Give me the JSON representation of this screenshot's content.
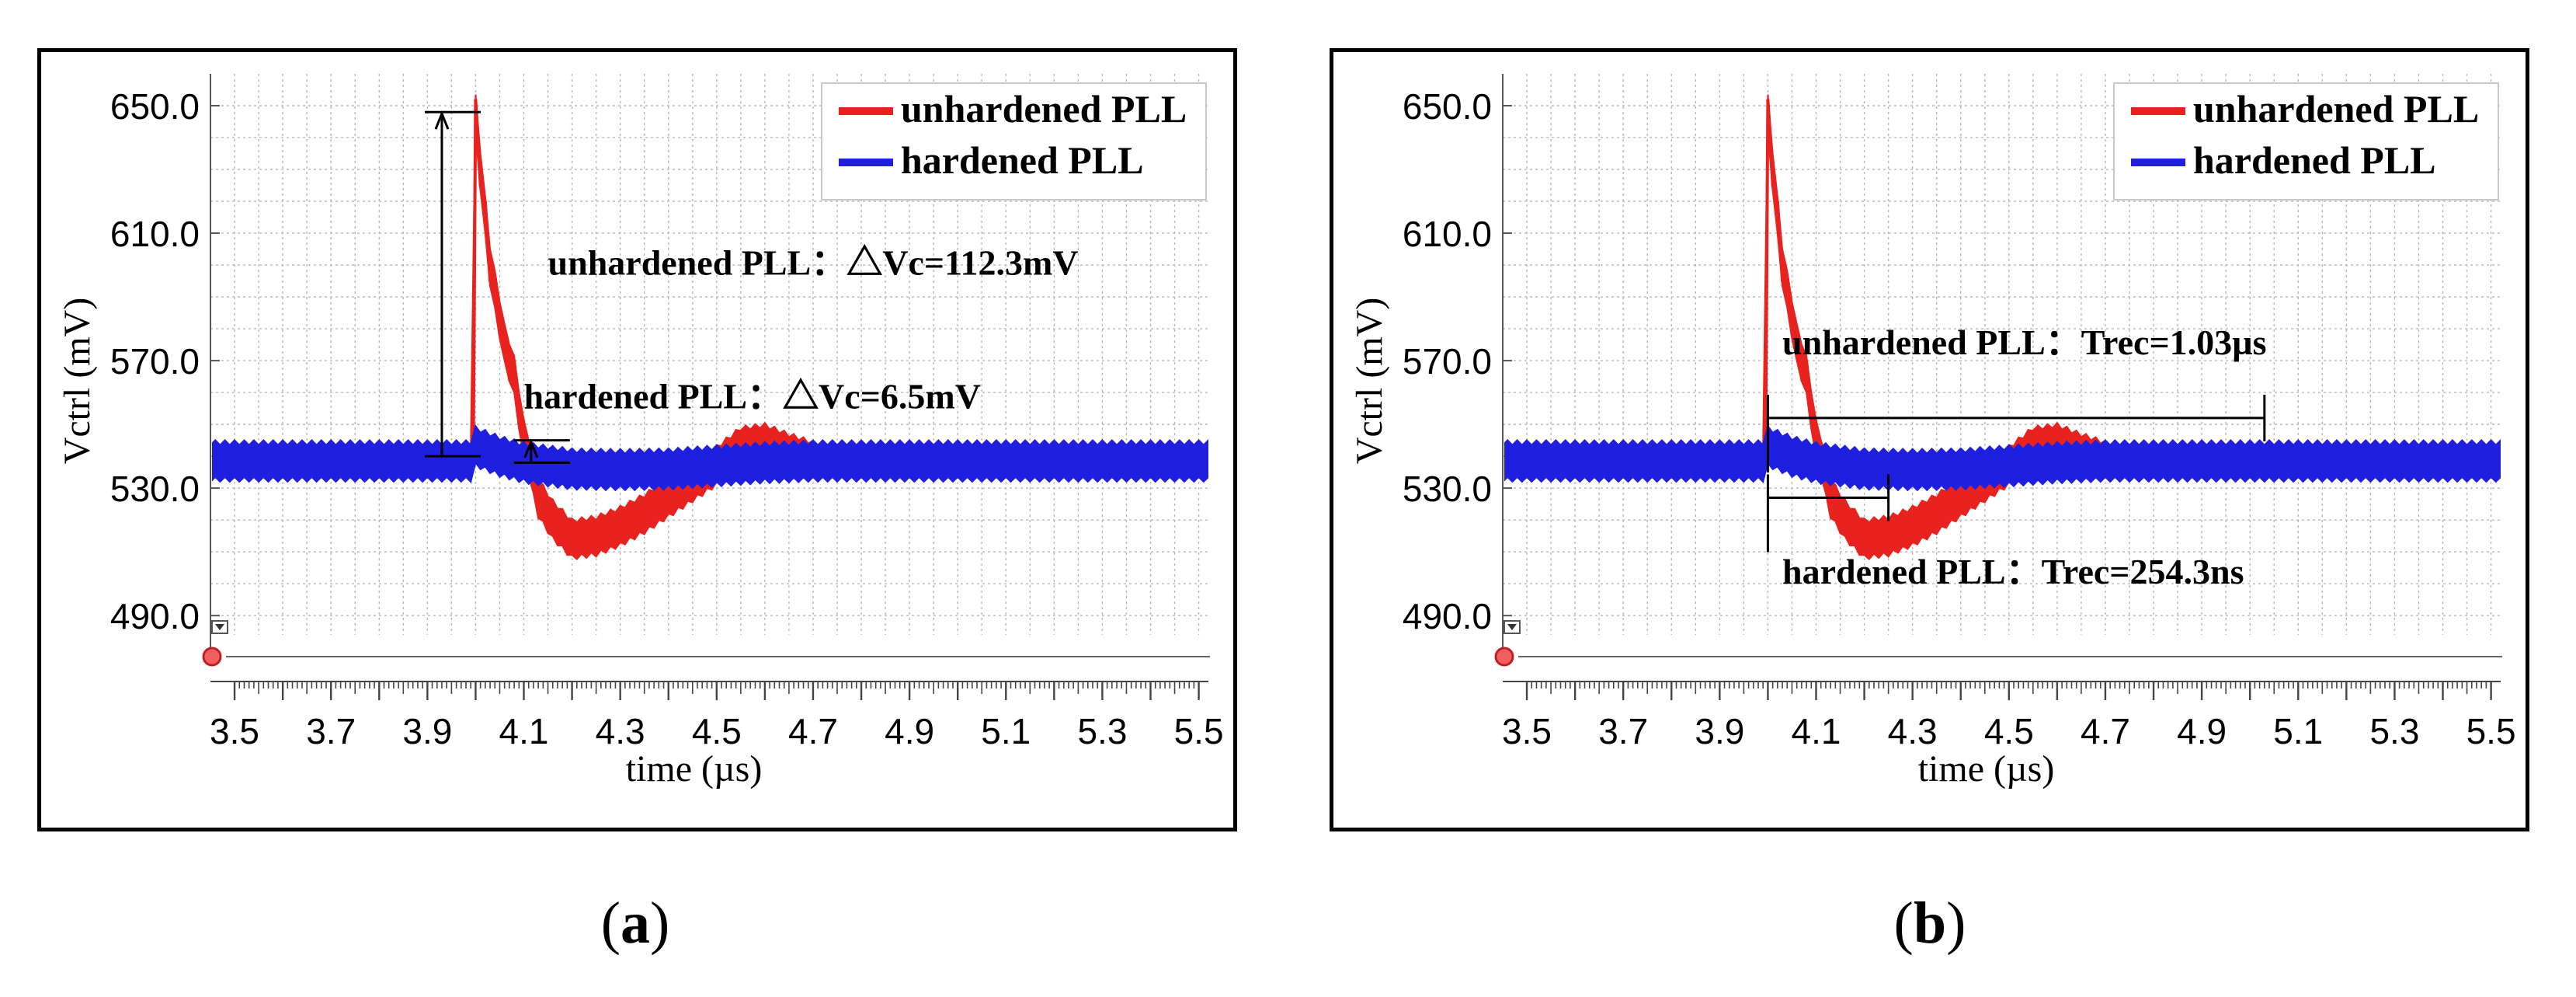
{
  "chart_data": [
    {
      "panel": "a",
      "type": "line",
      "xlabel": "time (µs)",
      "ylabel": "Vctrl (mV)",
      "xlim": [
        3.45,
        5.52
      ],
      "ylim": [
        482,
        660
      ],
      "xticks": [
        "3.5",
        "3.7",
        "3.9",
        "4.1",
        "4.3",
        "4.5",
        "4.7",
        "4.9",
        "5.1",
        "5.3",
        "5.5"
      ],
      "yticks": [
        "490.0",
        "530.0",
        "570.0",
        "610.0",
        "650.0"
      ],
      "legend": {
        "position": "top-right",
        "items": [
          {
            "label": "unhardened PLL",
            "color": "#e8231f"
          },
          {
            "label": "hardened PLL",
            "color": "#1f1fe0"
          }
        ]
      },
      "series": [
        {
          "name": "unhardened PLL",
          "color": "#e8231f",
          "x": [
            3.45,
            3.998,
            4.0,
            4.01,
            4.03,
            4.06,
            4.08,
            4.1,
            4.11,
            4.13,
            4.16,
            4.2,
            4.25,
            4.3,
            4.35,
            4.4,
            4.45,
            4.5,
            4.55,
            4.6,
            4.65,
            4.7,
            5.52
          ],
          "y": [
            538.5,
            538.5,
            647,
            630,
            600,
            575,
            565,
            545,
            540,
            527,
            520,
            514,
            515,
            518,
            522,
            527,
            532,
            537,
            543,
            544,
            541,
            538.5,
            538.5
          ],
          "band": 5
        },
        {
          "name": "hardened PLL",
          "color": "#1f1fe0",
          "x": [
            3.45,
            3.998,
            4.0,
            4.05,
            4.1,
            4.2,
            4.3,
            4.4,
            4.5,
            4.6,
            4.7,
            5.52
          ],
          "y": [
            538.5,
            538.5,
            543,
            540,
            538,
            536,
            535.8,
            536,
            537,
            538,
            538.5,
            538.5
          ],
          "band": 5
        }
      ],
      "annotations": [
        {
          "text": "unhardened PLL：△Vc=112.3mV",
          "x": 4.15,
          "y": 597
        },
        {
          "text": "hardened PLL：△Vc=6.5mV",
          "x": 4.1,
          "y": 555
        }
      ],
      "measures": [
        {
          "kind": "vertical",
          "x": 3.93,
          "y1": 540,
          "y2": 648
        },
        {
          "kind": "vertical",
          "x": 4.115,
          "y1": 538,
          "y2": 545
        }
      ]
    },
    {
      "panel": "b",
      "type": "line",
      "xlabel": "time (µs)",
      "ylabel": "Vctrl (mV)",
      "xlim": [
        3.45,
        5.52
      ],
      "ylim": [
        482,
        660
      ],
      "xticks": [
        "3.5",
        "3.7",
        "3.9",
        "4.1",
        "4.3",
        "4.5",
        "4.7",
        "4.9",
        "5.1",
        "5.3",
        "5.5"
      ],
      "yticks": [
        "490.0",
        "530.0",
        "570.0",
        "610.0",
        "650.0"
      ],
      "legend": {
        "position": "top-right",
        "items": [
          {
            "label": "unhardened PLL",
            "color": "#e8231f"
          },
          {
            "label": "hardened PLL",
            "color": "#1f1fe0"
          }
        ]
      },
      "series": [
        {
          "name": "unhardened PLL",
          "color": "#e8231f",
          "x": [
            3.45,
            3.998,
            4.0,
            4.01,
            4.03,
            4.06,
            4.08,
            4.1,
            4.11,
            4.13,
            4.16,
            4.2,
            4.25,
            4.3,
            4.35,
            4.4,
            4.45,
            4.5,
            4.55,
            4.6,
            4.65,
            4.7,
            5.52
          ],
          "y": [
            538.5,
            538.5,
            647,
            630,
            600,
            575,
            565,
            545,
            540,
            527,
            520,
            514,
            515,
            518,
            522,
            527,
            532,
            537,
            543,
            544,
            541,
            538.5,
            538.5
          ],
          "band": 5
        },
        {
          "name": "hardened PLL",
          "color": "#1f1fe0",
          "x": [
            3.45,
            3.998,
            4.0,
            4.05,
            4.1,
            4.2,
            4.3,
            4.4,
            4.5,
            4.6,
            4.7,
            5.52
          ],
          "y": [
            538.5,
            538.5,
            543,
            540,
            538,
            536,
            535.8,
            536,
            537,
            538,
            538.5,
            538.5
          ],
          "band": 5
        }
      ],
      "annotations": [
        {
          "text": "unhardened PLL：Trec=1.03µs",
          "x": 4.03,
          "y": 572
        },
        {
          "text": "hardened PLL：Trec=254.3ns",
          "x": 4.03,
          "y": 500
        }
      ],
      "measures": [
        {
          "kind": "horizontal",
          "x1": 4.0,
          "x2": 5.03,
          "y": 552
        },
        {
          "kind": "horizontal",
          "x1": 4.0,
          "x2": 4.25,
          "y": 527
        }
      ]
    }
  ],
  "captions": {
    "a": "a",
    "b": "b"
  }
}
